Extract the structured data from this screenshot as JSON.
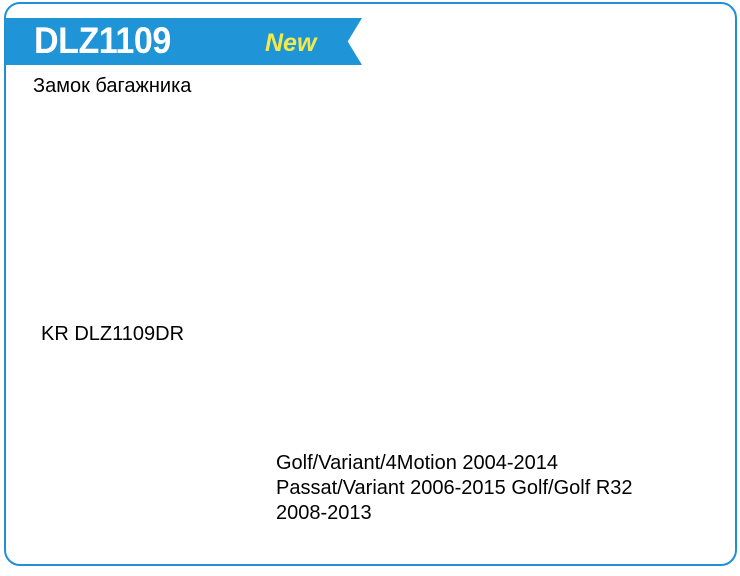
{
  "product": {
    "code": "DLZ1109",
    "badge": "New",
    "title": "Замок багажника",
    "part_number": "KR DLZ1109DR",
    "applications": [
      "Golf/Variant/4Motion 2004-2014",
      "Passat/Variant 2006-2015 Golf/Golf R32",
      "2008-2013"
    ]
  },
  "colors": {
    "border": "#1f8fd6",
    "banner": "#1f95d8",
    "badge": "#f3ea4a"
  }
}
